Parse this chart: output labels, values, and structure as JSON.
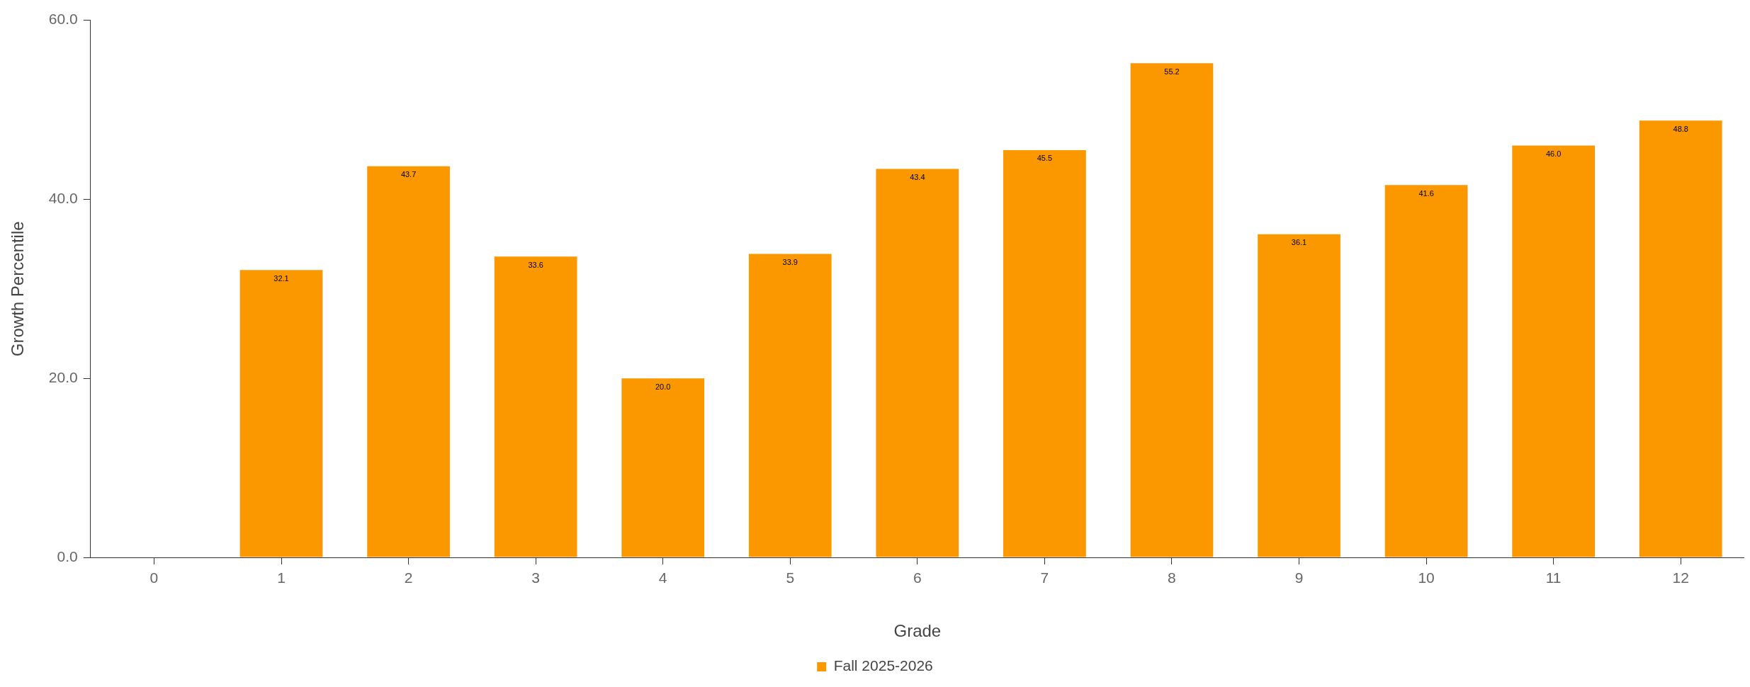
{
  "chart_data": {
    "type": "bar",
    "xlabel": "Grade",
    "ylabel": "Growth Percentile",
    "categories": [
      "0",
      "1",
      "2",
      "3",
      "4",
      "5",
      "6",
      "7",
      "8",
      "9",
      "10",
      "11",
      "12"
    ],
    "series": [
      {
        "name": "Fall 2025-2026",
        "color": "#fb9800",
        "values": [
          null,
          32.1,
          43.7,
          33.6,
          20,
          33.9,
          43.4,
          45.5,
          55.2,
          36.1,
          41.6,
          46,
          48.8
        ],
        "value_labels": [
          null,
          "32.1",
          "43.7",
          "33.6",
          "20.0",
          "33.9",
          "43.4",
          "45.5",
          "55.2",
          "36.1",
          "41.6",
          "46.0",
          "48.8"
        ]
      }
    ],
    "ylim": [
      0,
      60
    ],
    "yticks": [
      {
        "value": 0,
        "label": "0.0"
      },
      {
        "value": 20,
        "label": "20.0"
      },
      {
        "value": 40,
        "label": "40.0"
      },
      {
        "value": 60,
        "label": "60.0"
      }
    ],
    "grid": false,
    "legend": "bottom"
  }
}
